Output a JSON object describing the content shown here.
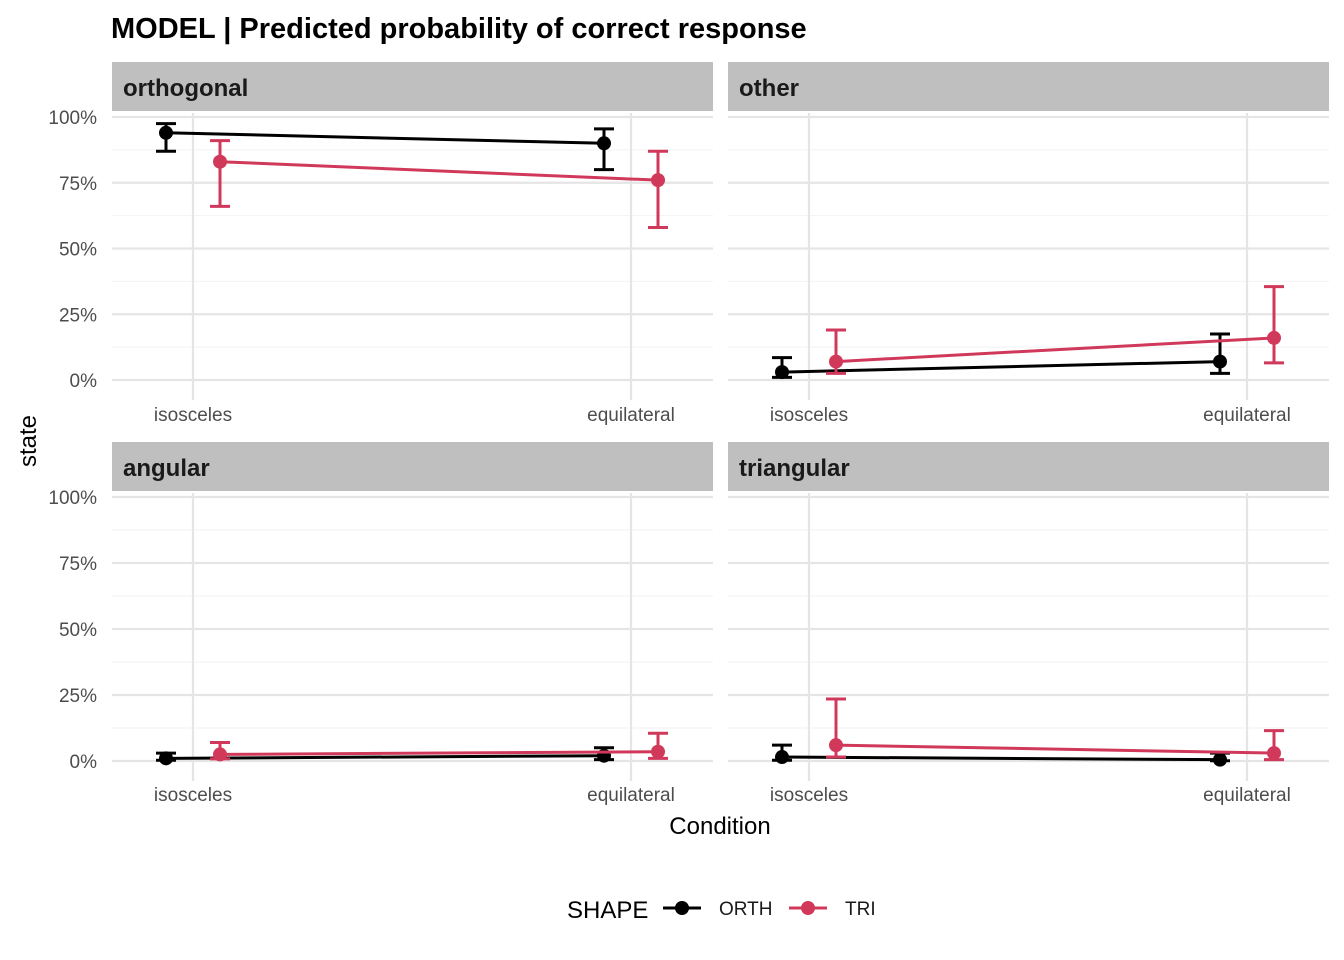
{
  "chart_data": {
    "type": "line",
    "title": "MODEL | Predicted probability of correct response",
    "xlabel": "Condition",
    "ylabel": "state",
    "categories": [
      "isosceles",
      "equilateral"
    ],
    "y_ticks": [
      "0%",
      "25%",
      "50%",
      "75%",
      "100%"
    ],
    "ylim": [
      0,
      1
    ],
    "grid": true,
    "legend": {
      "title": "SHAPE",
      "position": "bottom",
      "entries": [
        {
          "label": "ORTH",
          "color": "#000000"
        },
        {
          "label": "TRI",
          "color": "#d1395b"
        }
      ]
    },
    "panels": [
      {
        "label": "orthogonal",
        "series": [
          {
            "name": "ORTH",
            "color": "#000000",
            "values": [
              0.94,
              0.9
            ],
            "lower": [
              0.87,
              0.8
            ],
            "upper": [
              0.975,
              0.955
            ]
          },
          {
            "name": "TRI",
            "color": "#d1395b",
            "values": [
              0.83,
              0.76
            ],
            "lower": [
              0.66,
              0.58
            ],
            "upper": [
              0.91,
              0.87
            ]
          }
        ]
      },
      {
        "label": "other",
        "series": [
          {
            "name": "ORTH",
            "color": "#000000",
            "values": [
              0.03,
              0.07
            ],
            "lower": [
              0.01,
              0.025
            ],
            "upper": [
              0.085,
              0.175
            ]
          },
          {
            "name": "TRI",
            "color": "#d1395b",
            "values": [
              0.07,
              0.16
            ],
            "lower": [
              0.025,
              0.065
            ],
            "upper": [
              0.19,
              0.355
            ]
          }
        ]
      },
      {
        "label": "angular",
        "series": [
          {
            "name": "ORTH",
            "color": "#000000",
            "values": [
              0.01,
              0.02
            ],
            "lower": [
              0.003,
              0.005
            ],
            "upper": [
              0.03,
              0.05
            ]
          },
          {
            "name": "TRI",
            "color": "#d1395b",
            "values": [
              0.025,
              0.035
            ],
            "lower": [
              0.008,
              0.01
            ],
            "upper": [
              0.07,
              0.105
            ]
          }
        ]
      },
      {
        "label": "triangular",
        "series": [
          {
            "name": "ORTH",
            "color": "#000000",
            "values": [
              0.015,
              0.005
            ],
            "lower": [
              0.003,
              0.001
            ],
            "upper": [
              0.06,
              0.03
            ]
          },
          {
            "name": "TRI",
            "color": "#d1395b",
            "values": [
              0.06,
              0.03
            ],
            "lower": [
              0.015,
              0.005
            ],
            "upper": [
              0.235,
              0.115
            ]
          }
        ]
      }
    ]
  }
}
